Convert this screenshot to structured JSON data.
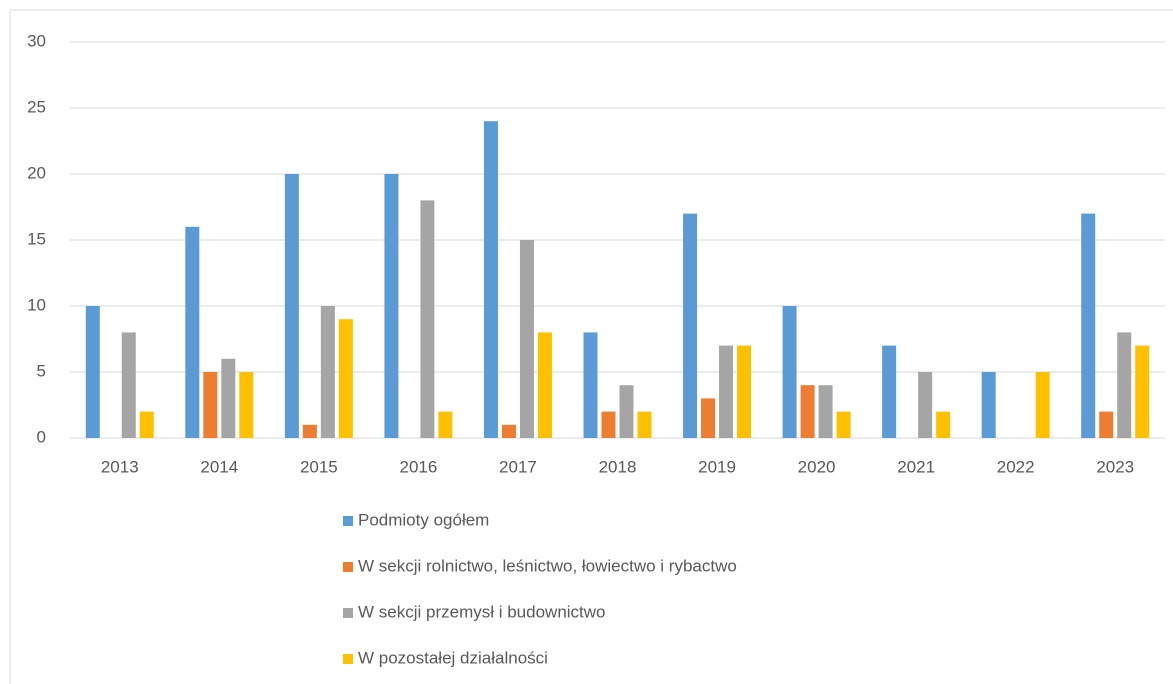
{
  "chart_data": {
    "type": "bar",
    "categories": [
      "2013",
      "2014",
      "2015",
      "2016",
      "2017",
      "2018",
      "2019",
      "2020",
      "2021",
      "2022",
      "2023"
    ],
    "series": [
      {
        "name": "Podmioty ogółem",
        "color": "#5b9bd5",
        "values": [
          10,
          16,
          20,
          20,
          24,
          8,
          17,
          10,
          7,
          5,
          17
        ]
      },
      {
        "name": "W sekcji rolnictwo, leśnictwo, łowiectwo i rybactwo",
        "color": "#ed7d31",
        "values": [
          0,
          5,
          1,
          0,
          1,
          2,
          3,
          4,
          0,
          0,
          2
        ]
      },
      {
        "name": "W sekcji przemysł i budownictwo",
        "color": "#a5a5a5",
        "values": [
          8,
          6,
          10,
          18,
          15,
          4,
          7,
          4,
          5,
          0,
          8
        ]
      },
      {
        "name": "W pozostałej działalności",
        "color": "#ffc000",
        "values": [
          2,
          5,
          9,
          2,
          8,
          2,
          7,
          2,
          2,
          5,
          7
        ]
      }
    ],
    "ylim": [
      0,
      30
    ],
    "yticks": [
      0,
      5,
      10,
      15,
      20,
      25,
      30
    ],
    "grid": true,
    "legend": "bottom"
  }
}
